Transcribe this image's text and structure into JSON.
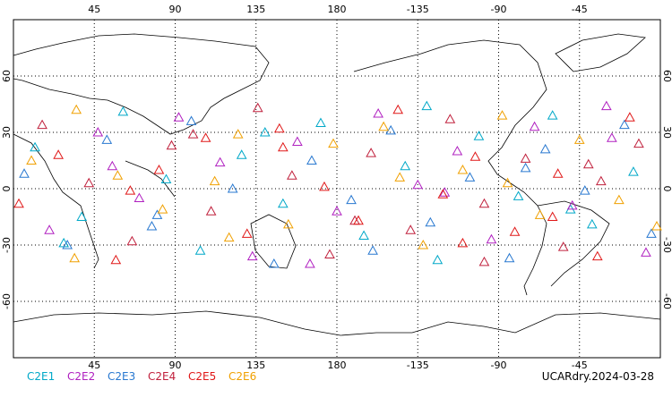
{
  "chart_data": {
    "type": "scatter",
    "xlim": [
      0,
      360
    ],
    "ylim": [
      -90,
      90
    ],
    "xticks": [
      45,
      90,
      135,
      180,
      {
        "value": 225,
        "label": "-135"
      },
      {
        "value": 270,
        "label": "-90"
      },
      {
        "value": 315,
        "label": "-45"
      }
    ],
    "yticks": [
      -60,
      -30,
      0,
      30,
      60
    ],
    "grid": true,
    "footer": "UCARdry.2024-03-28",
    "series": [
      {
        "name": "C2E1",
        "color": "#00a8c8",
        "x": [
          12,
          38,
          61,
          85,
          104,
          127,
          150,
          171,
          195,
          218,
          236,
          259,
          281,
          300,
          322,
          345,
          28,
          140,
          230,
          310
        ],
        "y": [
          22,
          -15,
          41,
          5,
          -33,
          18,
          -8,
          35,
          -25,
          12,
          -38,
          28,
          -4,
          39,
          -19,
          9,
          -29,
          30,
          44,
          -11
        ]
      },
      {
        "name": "C2E2",
        "color": "#b020c0",
        "x": [
          20,
          47,
          70,
          92,
          115,
          133,
          158,
          180,
          203,
          225,
          247,
          266,
          290,
          311,
          333,
          352,
          55,
          165,
          240,
          330
        ],
        "y": [
          -22,
          30,
          -5,
          38,
          14,
          -36,
          25,
          -12,
          40,
          2,
          20,
          -27,
          33,
          -9,
          27,
          -34,
          12,
          -40,
          -2,
          44
        ]
      },
      {
        "name": "C2E3",
        "color": "#2878d0",
        "x": [
          6,
          30,
          52,
          77,
          99,
          122,
          145,
          166,
          188,
          210,
          232,
          254,
          276,
          296,
          318,
          340,
          80,
          200,
          285,
          355
        ],
        "y": [
          8,
          -30,
          26,
          -20,
          36,
          0,
          -40,
          15,
          -6,
          31,
          -18,
          6,
          -37,
          21,
          -1,
          34,
          -14,
          -33,
          11,
          -24
        ]
      },
      {
        "name": "C2E4",
        "color": "#c0203c",
        "x": [
          16,
          42,
          66,
          88,
          110,
          136,
          155,
          176,
          199,
          221,
          243,
          262,
          285,
          306,
          327,
          348,
          100,
          190,
          262,
          320
        ],
        "y": [
          34,
          3,
          -28,
          23,
          -12,
          43,
          7,
          -35,
          19,
          -22,
          37,
          -8,
          16,
          -31,
          4,
          24,
          29,
          -17,
          -39,
          13
        ]
      },
      {
        "name": "C2E5",
        "color": "#e01818",
        "x": [
          3,
          25,
          57,
          81,
          107,
          130,
          148,
          173,
          192,
          214,
          239,
          257,
          279,
          303,
          325,
          343,
          65,
          150,
          250,
          300
        ],
        "y": [
          -8,
          18,
          -38,
          10,
          27,
          -24,
          32,
          1,
          -17,
          42,
          -3,
          17,
          -23,
          8,
          -36,
          38,
          -1,
          22,
          -29,
          -15
        ]
      },
      {
        "name": "C2E6",
        "color": "#f0a000",
        "x": [
          10,
          34,
          58,
          83,
          112,
          125,
          153,
          178,
          206,
          228,
          250,
          272,
          293,
          315,
          337,
          358,
          120,
          215,
          275,
          35
        ],
        "y": [
          15,
          -37,
          7,
          -11,
          4,
          29,
          -19,
          24,
          33,
          -30,
          10,
          39,
          -14,
          26,
          -6,
          -20,
          -26,
          6,
          3,
          42
        ]
      }
    ]
  }
}
